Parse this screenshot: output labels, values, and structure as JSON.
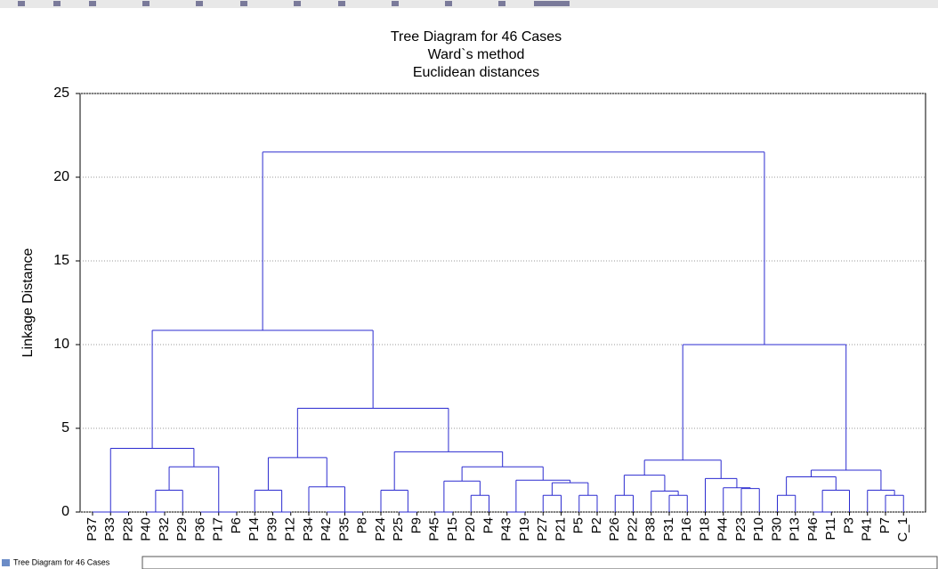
{
  "chart_data": {
    "type": "dendrogram",
    "title": "Tree Diagram for 46 Cases",
    "subtitle": [
      "Ward`s method",
      "Euclidean distances"
    ],
    "y_label": "Linkage Distance",
    "ylim": [
      0,
      25
    ],
    "yticks": [
      0,
      5,
      10,
      15,
      20,
      25
    ],
    "grid": true,
    "color": "#2b2bd0",
    "tree": {
      "height": 21.5,
      "children": [
        {
          "height": 10.85,
          "children": [
            {
              "height": 3.8,
              "children": [
                {
                  "height": 0,
                  "children": [
                    "P37",
                    "P33",
                    "P28"
                  ]
                },
                {
                  "height": 2.7,
                  "children": [
                    {
                      "height": 1.3,
                      "children": [
                        {
                          "height": 0,
                          "children": [
                            "P40",
                            "P32"
                          ]
                        },
                        "P29"
                      ]
                    },
                    {
                      "height": 0,
                      "children": [
                        "P36",
                        "P17",
                        "P6"
                      ]
                    }
                  ]
                }
              ]
            },
            {
              "height": 6.2,
              "children": [
                {
                  "height": 3.25,
                  "children": [
                    {
                      "height": 1.3,
                      "children": [
                        "P14",
                        {
                          "height": 0,
                          "children": [
                            "P39",
                            "P12"
                          ]
                        }
                      ]
                    },
                    {
                      "height": 1.5,
                      "children": [
                        "P34",
                        {
                          "height": 0,
                          "children": [
                            "P42",
                            "P35",
                            "P8"
                          ]
                        }
                      ]
                    }
                  ]
                },
                {
                  "height": 3.6,
                  "children": [
                    {
                      "height": 1.3,
                      "children": [
                        "P24",
                        {
                          "height": 0,
                          "children": [
                            "P25",
                            "P9"
                          ]
                        }
                      ]
                    },
                    {
                      "height": 2.7,
                      "children": [
                        {
                          "height": 1.85,
                          "children": [
                            {
                              "height": 0,
                              "children": [
                                "P45",
                                "P15"
                              ]
                            },
                            {
                              "height": 1.0,
                              "children": [
                                "P20",
                                "P4"
                              ]
                            }
                          ]
                        },
                        {
                          "height": 1.9,
                          "children": [
                            {
                              "height": 0,
                              "children": [
                                "P43",
                                "P19"
                              ]
                            },
                            {
                              "height": 1.75,
                              "children": [
                                {
                                  "height": 1.0,
                                  "children": [
                                    "P27",
                                    "P21"
                                  ]
                                },
                                {
                                  "height": 1.0,
                                  "children": [
                                    "P5",
                                    "P2"
                                  ]
                                }
                              ]
                            }
                          ]
                        }
                      ]
                    }
                  ]
                }
              ]
            }
          ]
        },
        {
          "height": 10,
          "children": [
            {
              "height": 3.1,
              "children": [
                {
                  "height": 2.2,
                  "children": [
                    {
                      "height": 1.0,
                      "children": [
                        "P26",
                        "P22"
                      ]
                    },
                    {
                      "height": 1.25,
                      "children": [
                        "P38",
                        {
                          "height": 1.0,
                          "children": [
                            "P31",
                            "P16"
                          ]
                        }
                      ]
                    }
                  ]
                },
                {
                  "height": 2.0,
                  "children": [
                    "P18",
                    {
                      "height": 1.45,
                      "children": [
                        "P44",
                        {
                          "height": 1.4,
                          "children": [
                            "P23",
                            "P10"
                          ]
                        }
                      ]
                    }
                  ]
                }
              ]
            },
            {
              "height": 2.5,
              "children": [
                {
                  "height": 2.1,
                  "children": [
                    {
                      "height": 1.0,
                      "children": [
                        "P30",
                        "P13"
                      ]
                    },
                    {
                      "height": 1.3,
                      "children": [
                        {
                          "height": 0,
                          "children": [
                            "P46",
                            "P11"
                          ]
                        },
                        "P3"
                      ]
                    }
                  ]
                },
                {
                  "height": 1.3,
                  "children": [
                    "P41",
                    {
                      "height": 1.0,
                      "children": [
                        "P7",
                        "C_1"
                      ]
                    }
                  ]
                }
              ]
            }
          ]
        }
      ]
    }
  },
  "window_tab": "Tree Diagram for 46 Cases"
}
